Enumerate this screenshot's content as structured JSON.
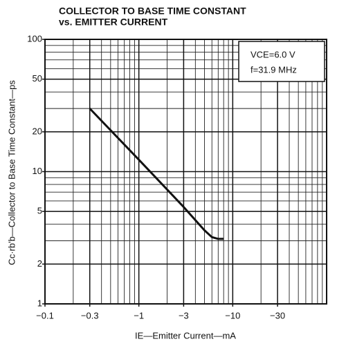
{
  "chart_data": {
    "type": "line",
    "title": [
      "COLLECTOR TO BASE TIME CONSTANT",
      "vs. EMITTER CURRENT"
    ],
    "xlabel": "IE—Emitter Current—mA",
    "ylabel": "Cc·rb'b—Collector to Base Time Constant—ps",
    "annotations": [
      "VCE=6.0 V",
      "f=31.9 MHz"
    ],
    "x": [
      -0.3,
      -1,
      -3,
      -5,
      -6,
      -7,
      -8
    ],
    "series": [
      {
        "name": "Cc·rb'b",
        "color": "#111111",
        "values": [
          30,
          12.3,
          5.4,
          3.6,
          3.2,
          3.1,
          3.1
        ]
      }
    ],
    "xlim": [
      -0.1,
      -100
    ],
    "xlog": true,
    "xticks": [
      {
        "value": -0.1,
        "label": "−0.1"
      },
      {
        "value": -0.3,
        "label": "−0.3"
      },
      {
        "value": -1,
        "label": "−1"
      },
      {
        "value": -3,
        "label": "−3"
      },
      {
        "value": -10,
        "label": "−10"
      },
      {
        "value": -30,
        "label": "−30"
      }
    ],
    "ylim": [
      1,
      100
    ],
    "ylog": true,
    "yticks": [
      1,
      2,
      5,
      10,
      20,
      50,
      100
    ],
    "grid": true,
    "minor_grid": true
  }
}
